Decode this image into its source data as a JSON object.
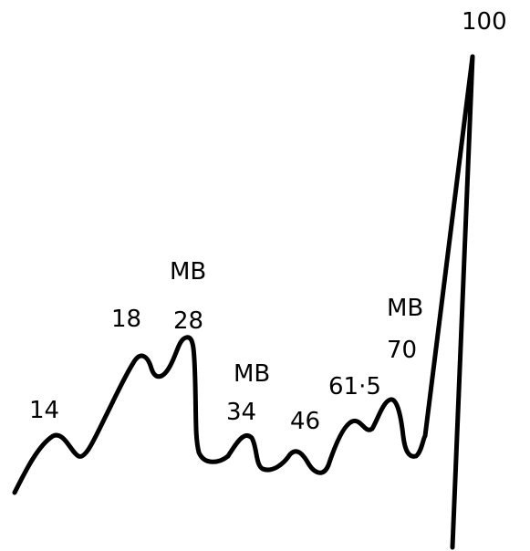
{
  "colors": {
    "ink": "#000000",
    "background": "#ffffff"
  },
  "labels": {
    "peak_14": "14",
    "peak_18": "18",
    "peak_28_tag": "MB",
    "peak_28": "28",
    "peak_34_tag": "MB",
    "peak_34": "34",
    "peak_46": "46",
    "peak_61_5": "61·5",
    "peak_70_tag": "MB",
    "peak_70": "70",
    "peak_100": "100"
  }
}
